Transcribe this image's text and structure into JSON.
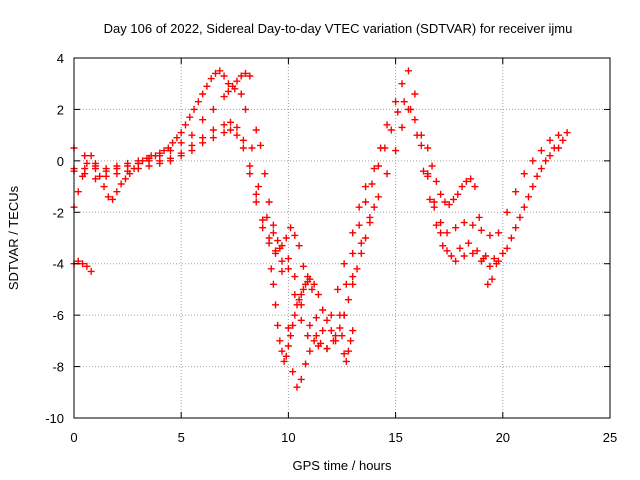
{
  "chart_data": {
    "type": "scatter",
    "title": "Day 106 of 2022, Sidereal Day-to-day VTEC variation (SDTVAR) for receiver ijmu",
    "xlabel": "GPS time / hours",
    "ylabel": "SDTVAR / TECUs",
    "xlim": [
      0,
      25
    ],
    "ylim": [
      -10,
      4
    ],
    "xticks": [
      "0",
      "5",
      "10",
      "15",
      "20",
      "25"
    ],
    "yticks": [
      "-10",
      "-8",
      "-6",
      "-4",
      "-2",
      "0",
      "2",
      "4"
    ],
    "grid": true,
    "marker": "+",
    "series_color": "#ff0000",
    "series": [
      {
        "x": [
          0.0,
          0.5,
          1.0,
          1.5,
          2.0,
          2.5,
          3.0,
          3.5,
          4.0,
          4.5,
          5.0,
          5.5,
          6.0,
          6.5,
          7.0,
          7.2,
          7.5,
          7.8,
          8.0,
          8.3,
          8.6,
          9.0,
          9.3,
          9.6,
          10.0,
          10.3,
          10.6,
          11.0,
          11.3,
          11.6,
          12.0,
          12.3,
          12.6,
          13.0,
          13.3,
          13.6,
          14.0,
          14.3,
          14.6,
          15.0,
          15.3,
          15.6,
          15.9,
          16.2,
          16.5,
          16.8,
          17.1,
          17.4,
          17.8,
          18.2,
          18.6,
          19.0,
          19.4,
          19.8,
          20.2,
          20.6,
          21.0,
          21.4,
          21.8,
          22.2,
          22.6,
          23.0
        ],
        "y": [
          0.5,
          0.2,
          -0.2,
          -0.3,
          -0.2,
          -0.1,
          0.0,
          0.1,
          0.2,
          0.4,
          0.7,
          1.0,
          1.6,
          2.0,
          2.5,
          2.7,
          2.8,
          2.6,
          2.0,
          0.5,
          -1.0,
          -2.2,
          -2.8,
          -3.4,
          -3.8,
          -4.5,
          -5.6,
          -6.4,
          -6.8,
          -6.6,
          -6.0,
          -5.0,
          -4.0,
          -2.8,
          -1.8,
          -1.0,
          -0.3,
          0.5,
          1.4,
          2.3,
          3.0,
          3.5,
          2.6,
          1.0,
          -0.5,
          -1.6,
          -2.4,
          -2.8,
          -2.6,
          -2.4,
          -2.5,
          -2.7,
          -2.9,
          -2.8,
          -2.0,
          -1.2,
          -0.5,
          0.0,
          0.4,
          0.8,
          1.0,
          1.1
        ]
      },
      {
        "x": [
          0.0,
          0.5,
          1.0,
          1.5,
          2.0,
          2.5,
          3.0,
          3.5,
          4.0,
          4.5,
          5.0,
          5.5,
          6.0,
          6.5,
          7.0,
          7.3,
          7.6,
          7.9,
          8.2,
          8.5,
          8.8,
          9.1,
          9.4,
          9.7,
          10.0,
          10.3,
          10.6,
          10.9,
          11.2,
          11.5,
          11.8,
          12.1,
          12.4,
          12.7,
          13.0,
          13.3,
          13.6,
          13.9,
          14.2,
          14.5,
          14.8,
          15.1,
          15.4,
          15.7,
          16.0,
          16.3,
          16.6,
          16.9,
          17.2,
          17.6,
          18.0,
          18.4,
          18.8,
          19.2,
          19.6,
          20.0,
          20.4,
          20.8,
          21.2,
          21.6,
          22.0,
          22.4,
          22.8
        ],
        "y": [
          -0.4,
          -0.3,
          -0.3,
          -0.4,
          -0.3,
          -0.2,
          -0.1,
          0.0,
          0.0,
          0.1,
          0.3,
          0.6,
          0.9,
          1.2,
          1.4,
          1.5,
          1.3,
          0.8,
          -0.2,
          -1.3,
          -2.3,
          -3.0,
          -3.5,
          -3.9,
          -4.2,
          -5.2,
          -6.2,
          -6.8,
          -7.0,
          -7.1,
          -7.3,
          -7.0,
          -6.0,
          -4.8,
          -3.6,
          -2.5,
          -1.6,
          -0.9,
          -0.2,
          0.5,
          1.2,
          1.9,
          2.3,
          2.0,
          1.0,
          -0.4,
          -1.5,
          -2.5,
          -3.3,
          -3.7,
          -3.4,
          -3.2,
          -3.5,
          -3.7,
          -3.8,
          -3.6,
          -3.0,
          -2.2,
          -1.4,
          -0.6,
          0.0,
          0.5,
          0.8
        ]
      },
      {
        "x": [
          0.0,
          0.5,
          1.0,
          1.5,
          2.0,
          2.5,
          3.0,
          3.5,
          4.0,
          4.5,
          5.0,
          5.5,
          6.0,
          6.5,
          7.0,
          7.3,
          7.6,
          7.9,
          8.2,
          8.5,
          8.8,
          9.1,
          9.4,
          9.7,
          10.0,
          10.2,
          10.4,
          10.6,
          10.8,
          11.0,
          11.4,
          11.8,
          12.2,
          12.6,
          13.0,
          13.4,
          13.8,
          14.2,
          14.6,
          15.0,
          15.3,
          15.6,
          15.9,
          16.2,
          16.5,
          16.8,
          17.1,
          17.4,
          17.8,
          18.2,
          18.6,
          19.0,
          19.4,
          19.8,
          20.2,
          20.6,
          21.0,
          21.4,
          21.8,
          22.2,
          22.6
        ],
        "y": [
          -0.3,
          -0.5,
          -0.7,
          -0.6,
          -0.5,
          -0.4,
          -0.3,
          -0.2,
          -0.1,
          0.0,
          0.2,
          0.4,
          0.7,
          0.9,
          1.1,
          1.2,
          1.0,
          0.5,
          -0.5,
          -1.6,
          -2.6,
          -3.2,
          -3.6,
          -4.3,
          -6.5,
          -8.2,
          -8.8,
          -8.5,
          -7.9,
          -7.4,
          -7.2,
          -7.3,
          -7.0,
          -6.0,
          -4.5,
          -3.2,
          -2.2,
          -1.4,
          -0.5,
          0.4,
          1.3,
          2.0,
          1.6,
          0.6,
          -0.6,
          -1.8,
          -2.8,
          -3.5,
          -3.9,
          -3.7,
          -3.6,
          -3.9,
          -4.1,
          -3.9,
          -3.4,
          -2.6,
          -1.8,
          -1.0,
          -0.3,
          0.2,
          0.5
        ]
      },
      {
        "x": [
          0.0,
          0.2,
          0.4,
          0.6,
          0.8,
          1.0,
          1.2,
          1.4,
          1.6,
          1.8,
          2.0,
          2.2,
          2.4,
          2.6,
          2.8,
          3.0,
          3.2,
          3.4,
          3.6,
          3.8,
          4.0,
          4.2,
          4.4,
          4.6,
          4.8,
          5.0,
          5.2,
          5.4,
          5.6,
          5.8,
          6.0,
          6.2,
          6.4,
          6.6,
          6.8,
          7.0,
          7.2,
          7.4,
          7.6,
          7.8,
          8.0,
          8.2
        ],
        "y": [
          -1.8,
          -1.2,
          -0.6,
          -0.1,
          0.2,
          -0.1,
          -0.6,
          -1.0,
          -1.4,
          -1.5,
          -1.2,
          -0.9,
          -0.7,
          -0.5,
          -0.3,
          -0.1,
          0.0,
          0.1,
          0.2,
          0.2,
          0.3,
          0.4,
          0.5,
          0.7,
          0.9,
          1.1,
          1.4,
          1.7,
          2.0,
          2.3,
          2.6,
          2.9,
          3.2,
          3.4,
          3.5,
          3.3,
          3.0,
          2.9,
          3.1,
          3.3,
          3.4,
          3.3
        ]
      },
      {
        "x": [
          0.0,
          0.2,
          0.4,
          0.6,
          0.8,
          8.5,
          8.7,
          8.9,
          9.1,
          9.3,
          9.5,
          9.7,
          9.9,
          10.1,
          10.3,
          10.5,
          10.7,
          10.9,
          11.1,
          11.3,
          13.0,
          12.9,
          12.8,
          12.7,
          12.6,
          12.5,
          16.5,
          16.7,
          16.9,
          17.1,
          17.3,
          17.5,
          17.7,
          17.9,
          18.1,
          18.3,
          18.5,
          18.7,
          18.9,
          19.1,
          19.3,
          19.5,
          19.7
        ],
        "y": [
          -4.0,
          -3.9,
          -4.0,
          -4.1,
          -4.3,
          1.2,
          0.6,
          -0.5,
          -1.6,
          -2.5,
          -3.1,
          -3.3,
          -3.0,
          -2.6,
          -2.9,
          -3.3,
          -4.1,
          -4.5,
          -5.0,
          -6.1,
          -6.6,
          -7.0,
          -7.4,
          -7.8,
          -7.5,
          -6.8,
          0.5,
          -0.2,
          -0.8,
          -1.3,
          -1.6,
          -1.7,
          -1.5,
          -1.3,
          -1.0,
          -0.8,
          -0.7,
          -1.0,
          -2.2,
          -3.8,
          -4.8,
          -4.6,
          -4.0
        ]
      },
      {
        "x": [
          9.2,
          9.3,
          9.4,
          9.5,
          9.6,
          9.7,
          9.8,
          9.9,
          10.0,
          10.1,
          10.2,
          10.3,
          10.4,
          10.5,
          10.6,
          10.7,
          10.8,
          10.9,
          11.0,
          11.2,
          11.4,
          11.6,
          11.8,
          12.0,
          12.2,
          12.4,
          12.6,
          12.8,
          13.0,
          13.2,
          13.4,
          13.6,
          13.8,
          14.0
        ],
        "y": [
          -4.2,
          -4.8,
          -5.6,
          -6.4,
          -7.0,
          -7.4,
          -7.8,
          -7.6,
          -7.2,
          -6.8,
          -6.4,
          -6.0,
          -5.6,
          -5.4,
          -5.2,
          -5.0,
          -4.8,
          -4.7,
          -4.6,
          -4.8,
          -5.2,
          -5.8,
          -6.2,
          -6.6,
          -6.8,
          -6.5,
          -6.0,
          -5.4,
          -4.8,
          -4.2,
          -3.6,
          -3.0,
          -2.4,
          -1.8
        ]
      }
    ]
  }
}
